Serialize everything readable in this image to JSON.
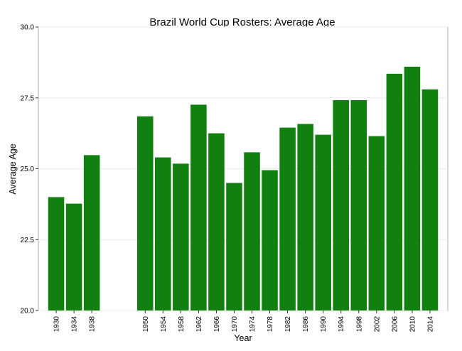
{
  "chart_data": {
    "type": "bar",
    "title": "Brazil World Cup Rosters: Average Age",
    "xlabel": "Year",
    "ylabel": "Average Age",
    "ylim": [
      20,
      30
    ],
    "yticks": [
      "20.0",
      "22.5",
      "25.0",
      "27.5",
      "30.0"
    ],
    "xlim": [
      1926,
      2018
    ],
    "grid": true,
    "bar_color": "#118011",
    "categories": [
      "1930",
      "1934",
      "1938",
      "1950",
      "1954",
      "1958",
      "1962",
      "1966",
      "1970",
      "1974",
      "1978",
      "1982",
      "1986",
      "1990",
      "1994",
      "1998",
      "2002",
      "2006",
      "2010",
      "2014"
    ],
    "values": [
      24.0,
      23.77,
      25.48,
      26.85,
      25.4,
      25.18,
      27.26,
      26.25,
      24.5,
      25.58,
      24.95,
      26.45,
      26.58,
      26.2,
      27.42,
      27.42,
      26.15,
      28.35,
      28.6,
      27.8
    ]
  }
}
